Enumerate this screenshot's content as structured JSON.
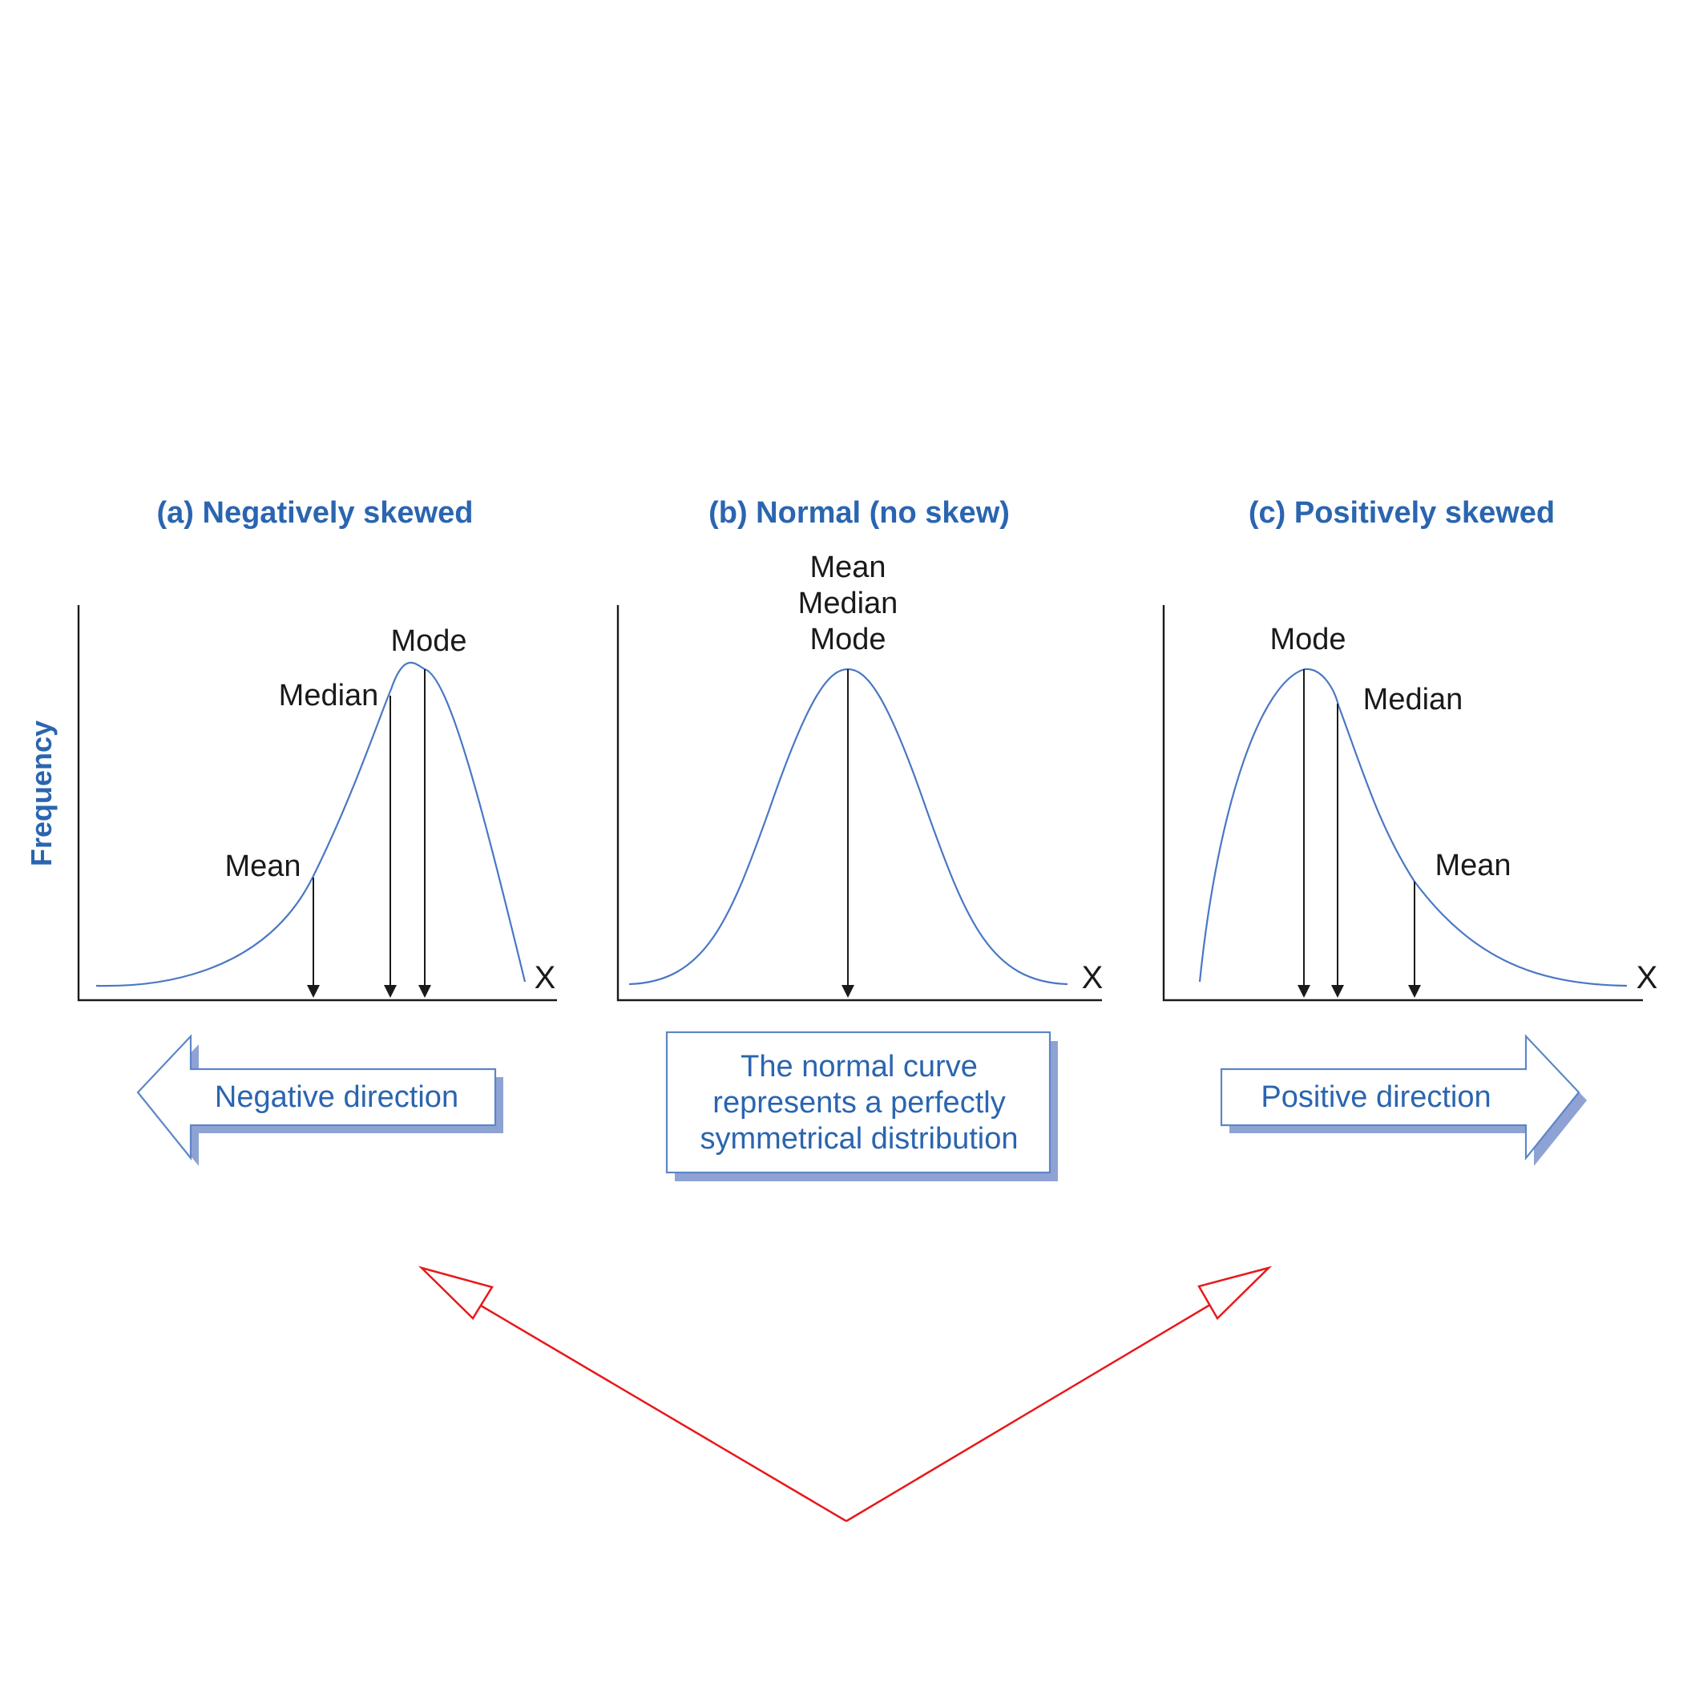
{
  "panels": {
    "a": {
      "title": "(a) Negatively skewed",
      "mean": "Mean",
      "median": "Median",
      "mode": "Mode",
      "x_axis": "X"
    },
    "b": {
      "title": "(b) Normal (no skew)",
      "mean": "Mean",
      "median": "Median",
      "mode": "Mode",
      "x_axis": "X"
    },
    "c": {
      "title": "(c) Positively skewed",
      "mean": "Mean",
      "median": "Median",
      "mode": "Mode",
      "x_axis": "X"
    }
  },
  "y_axis_label": "Frequency",
  "negative_arrow": {
    "label": "Negative direction"
  },
  "center_box": {
    "lines": [
      "The normal curve",
      "represents a perfectly",
      "symmetrical distribution"
    ]
  },
  "positive_arrow": {
    "label": "Positive direction"
  },
  "colors": {
    "text_blue": "#2a65b0",
    "curve_blue": "#4a78c4",
    "box_shadow": "#8ea3d4",
    "annotation_red": "#e8191b"
  }
}
